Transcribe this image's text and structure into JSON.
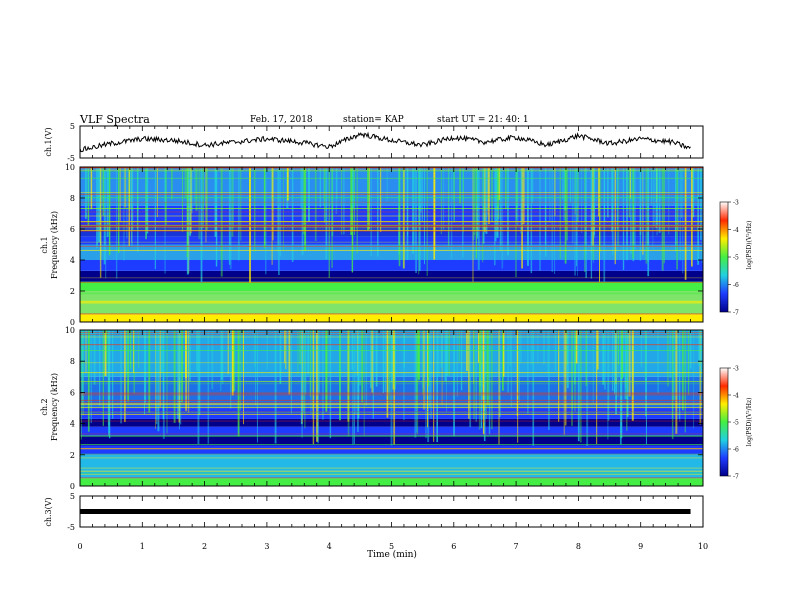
{
  "header": {
    "title": "VLF Spectra",
    "date": "Feb. 17, 2018",
    "station": "station= KAP",
    "start": "start  UT  =   21: 40: 1"
  },
  "chart_data": [
    {
      "type": "line",
      "panel": "ch1-voltage",
      "ylabel": "ch.1(V)",
      "ylim": [
        -5,
        5
      ],
      "yticks": [
        "5",
        "-5"
      ],
      "xlim": [
        0,
        10
      ],
      "series": [
        {
          "values_note": "",
          "x": [
            0,
            0.5,
            1,
            1.5,
            2,
            2.5,
            3,
            3.5,
            4,
            4.5,
            5,
            5.5,
            6,
            6.5,
            7,
            7.5,
            8,
            8.5,
            9,
            9.5,
            9.8
          ],
          "values": [
            -2.5,
            -0.5,
            1.0,
            0.5,
            -1.0,
            0.0,
            1.0,
            0.0,
            -1.5,
            2.5,
            0.5,
            -1.0,
            1.5,
            0.0,
            1.5,
            -1.0,
            2.0,
            -0.5,
            1.0,
            0.0,
            -2.0
          ]
        }
      ]
    },
    {
      "type": "heatmap",
      "panel": "ch1-spectrogram",
      "ylabel_top": "ch.1",
      "ylabel": "Frequency  (kHz)",
      "ylim": [
        0,
        10
      ],
      "yticks": [
        "0",
        "2",
        "4",
        "6",
        "8",
        "10"
      ],
      "xlim": [
        0,
        10
      ],
      "colorbar": {
        "label": "log(PSD)(V²/Hz)",
        "range": [
          -7,
          -3
        ],
        "ticks": [
          "-3",
          "-4",
          "-5",
          "-6",
          "-7"
        ]
      }
    },
    {
      "type": "heatmap",
      "panel": "ch2-spectrogram",
      "ylabel_top": "ch.2",
      "ylabel": "Frequency  (kHz)",
      "ylim": [
        0,
        10
      ],
      "yticks": [
        "0",
        "2",
        "4",
        "6",
        "8",
        "10"
      ],
      "xlim": [
        0,
        10
      ],
      "colorbar": {
        "label": "log(PSD)(V²/Hz)",
        "range": [
          -7,
          -3
        ],
        "ticks": [
          "-3",
          "-4",
          "-5",
          "-6",
          "-7"
        ]
      }
    },
    {
      "type": "line",
      "panel": "ch3-voltage",
      "ylabel": "ch.3(V)",
      "ylim": [
        -5,
        5
      ],
      "yticks": [
        "5",
        "-5"
      ],
      "xlim": [
        0,
        10
      ],
      "series": [
        {
          "x": [
            0,
            9.8
          ],
          "values": [
            0,
            0
          ]
        }
      ]
    }
  ],
  "xaxis": {
    "label": "Time  (min)",
    "ticks": [
      "0",
      "1",
      "2",
      "3",
      "4",
      "5",
      "6",
      "7",
      "8",
      "9",
      "10"
    ]
  },
  "colors": {
    "dark_blue": "#00008b",
    "blue": "#1e3cff",
    "cyan": "#22d0e0",
    "green": "#44ee44",
    "yellow": "#ffee00",
    "red": "#ff2a00"
  }
}
